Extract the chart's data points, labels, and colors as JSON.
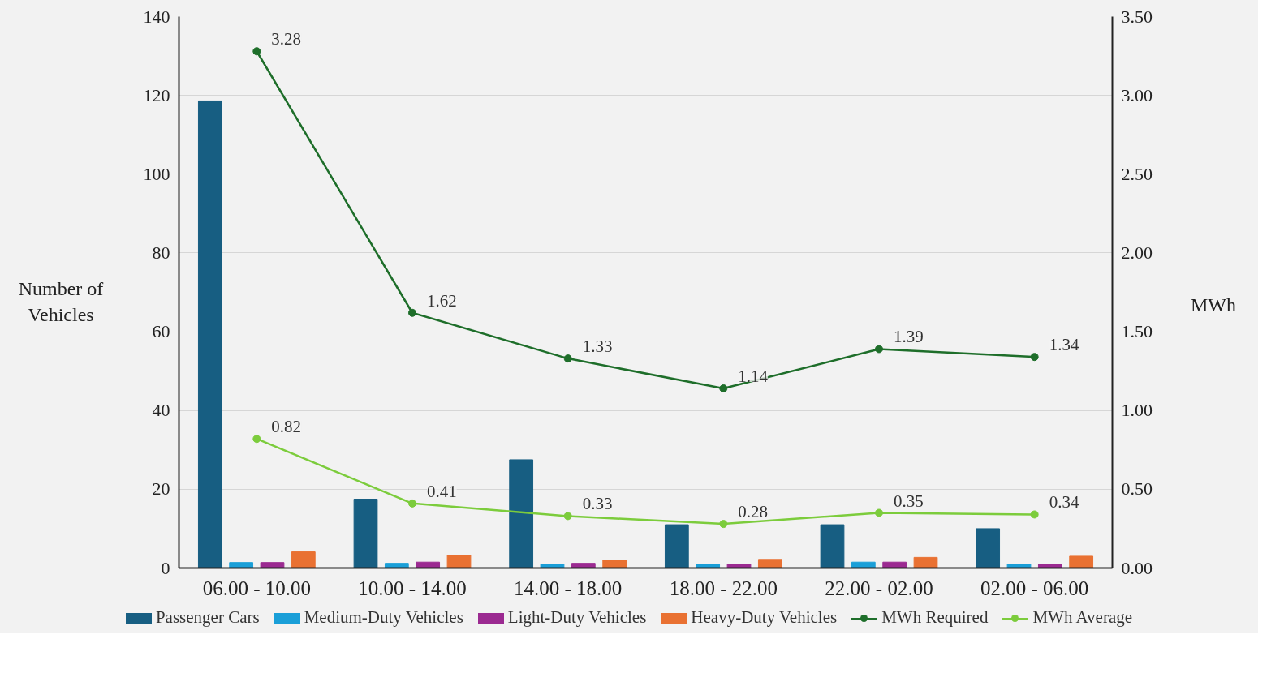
{
  "chart_data": {
    "type": "bar",
    "categories": [
      "06.00 - 10.00",
      "10.00 - 14.00",
      "14.00 - 18.00",
      "18.00 - 22.00",
      "22.00 - 02.00",
      "02.00 - 06.00"
    ],
    "series": [
      {
        "name": "Passenger Cars",
        "color": "#175e82",
        "values": [
          118.6,
          17.5,
          27.5,
          11,
          11,
          10
        ]
      },
      {
        "name": "Medium-Duty Vehicles",
        "color": "#1a9fd8",
        "values": [
          1.4,
          1.2,
          1.0,
          1.0,
          1.5,
          1.0
        ]
      },
      {
        "name": "Light-Duty Vehicles",
        "color": "#9b2a91",
        "values": [
          1.4,
          1.5,
          1.2,
          1.0,
          1.5,
          1.0
        ]
      },
      {
        "name": "Heavy-Duty Vehicles",
        "color": "#e97132",
        "values": [
          4.1,
          3.2,
          2.0,
          2.2,
          2.7,
          3.0
        ]
      },
      {
        "name": "MWh Required",
        "type": "line",
        "axis": "y2",
        "color": "#1e6e2a",
        "values": [
          3.28,
          1.62,
          1.33,
          1.14,
          1.39,
          1.34
        ],
        "value_labels": [
          "3.28",
          "1.62",
          "1.33",
          "1.14",
          "1.39",
          "1.34"
        ]
      },
      {
        "name": "MWh Average",
        "type": "line",
        "axis": "y2",
        "color": "#7ccc3c",
        "values": [
          0.82,
          0.41,
          0.33,
          0.28,
          0.35,
          0.34
        ],
        "value_labels": [
          "0.82",
          "0.41",
          "0.33",
          "0.28",
          "0.35",
          "0.34"
        ]
      }
    ],
    "ylabel": "Number of Vehicles",
    "y2label": "MWh",
    "ylim": [
      0,
      140
    ],
    "yticks": [
      0,
      20,
      40,
      60,
      80,
      100,
      120,
      140
    ],
    "y2lim": [
      0,
      3.5
    ],
    "y2ticks": [
      {
        "value": 0,
        "label": "0.00"
      },
      {
        "value": 0.5,
        "label": "0.50"
      },
      {
        "value": 1,
        "label": "1.00"
      },
      {
        "value": 1.5,
        "label": "1.50"
      },
      {
        "value": 2,
        "label": "2.00"
      },
      {
        "value": 2.5,
        "label": "2.50"
      },
      {
        "value": 3,
        "label": "3.00"
      },
      {
        "value": 3.5,
        "label": "3.50"
      }
    ],
    "grid": "y",
    "legend": "bottom",
    "marker": "circle"
  }
}
